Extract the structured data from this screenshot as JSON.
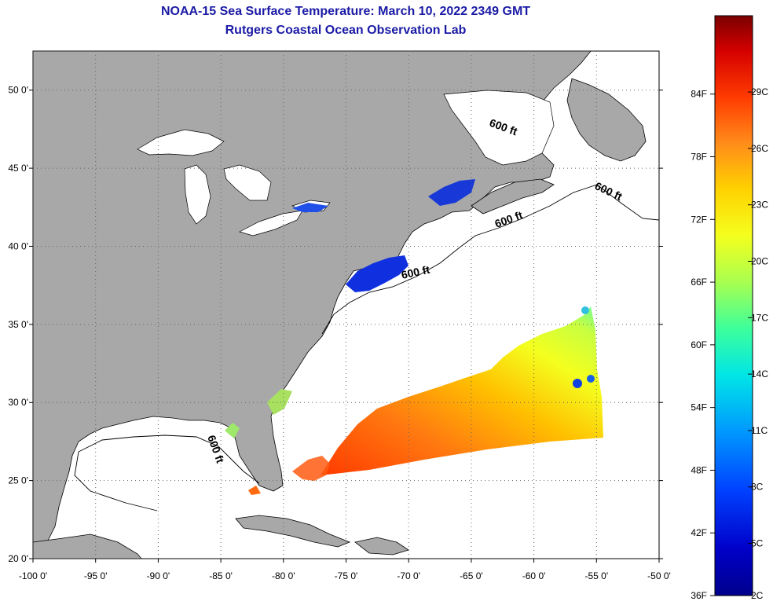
{
  "header": {
    "title": "NOAA-15 Sea Surface Temperature:  March 10, 2022 2349 GMT",
    "subtitle": "Rutgers Coastal Ocean Observation Lab"
  },
  "map": {
    "lon_range": [
      -100,
      -50
    ],
    "lat_range": [
      20,
      52.5
    ],
    "lon_ticks": [
      "-100 0'",
      "-95 0'",
      "-90 0'",
      "-85 0'",
      "-80 0'",
      "-75 0'",
      "-70 0'",
      "-65 0'",
      "-60 0'",
      "-55 0'",
      "-50 0'"
    ],
    "lat_ticks": [
      "20 0'",
      "25 0'",
      "30 0'",
      "35 0'",
      "40 0'",
      "45 0'",
      "50 0'"
    ],
    "contour_labels": [
      "600 ft",
      "600 ft",
      "600 ft",
      "600 ft",
      "600 ft"
    ],
    "land_color": "#a8a8a8",
    "ocean_color": "#ffffff"
  },
  "colorbar": {
    "fahrenheit_ticks": [
      "84F",
      "78F",
      "72F",
      "66F",
      "60F",
      "54F",
      "48F",
      "42F",
      "36F"
    ],
    "celsius_ticks": [
      "29C",
      "26C",
      "23C",
      "20C",
      "17C",
      "14C",
      "11C",
      "8C",
      "5C",
      "2C"
    ],
    "colors": [
      "#7a0000",
      "#d40000",
      "#ff3a00",
      "#ff8c1a",
      "#ffd200",
      "#f4ff1e",
      "#a8ff50",
      "#3cff9c",
      "#00e6e6",
      "#0096ff",
      "#0040ff",
      "#0000c8",
      "#00008c"
    ]
  }
}
